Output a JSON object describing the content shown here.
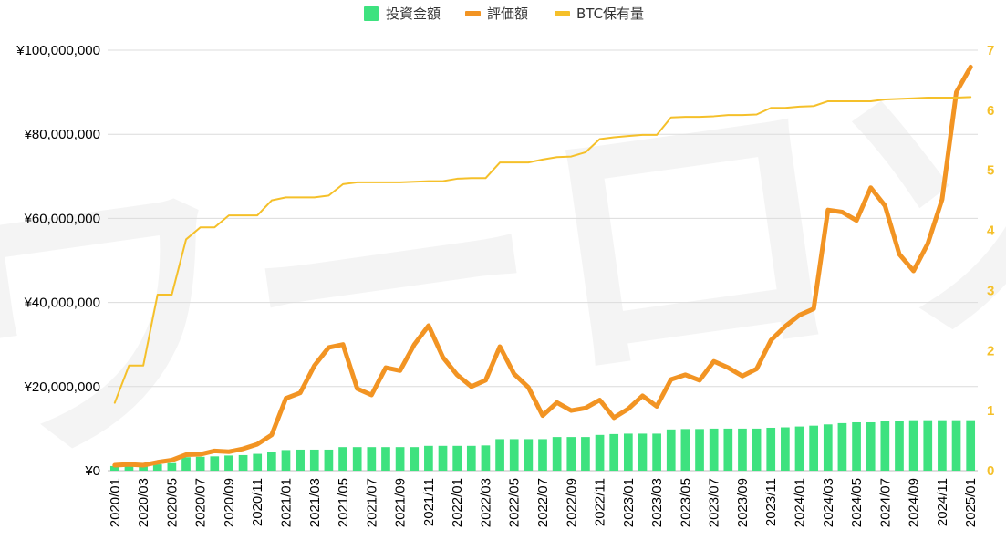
{
  "chart_data": {
    "type": "bar+line",
    "title": "",
    "watermark": "ワーロゾ",
    "legend": {
      "placement": "top-center",
      "items": [
        {
          "name": "投資金額",
          "color": "#3ee27f",
          "shape": "square"
        },
        {
          "name": "評価額",
          "color": "#f29423",
          "shape": "line"
        },
        {
          "name": "BTC保有量",
          "color": "#f5c02a",
          "shape": "line"
        }
      ]
    },
    "categories": [
      "2020/01",
      "2020/02",
      "2020/03",
      "2020/04",
      "2020/05",
      "2020/06",
      "2020/07",
      "2020/08",
      "2020/09",
      "2020/10",
      "2020/11",
      "2020/12",
      "2021/01",
      "2021/02",
      "2021/03",
      "2021/04",
      "2021/05",
      "2021/06",
      "2021/07",
      "2021/08",
      "2021/09",
      "2021/10",
      "2021/11",
      "2021/12",
      "2022/01",
      "2022/02",
      "2022/03",
      "2022/04",
      "2022/05",
      "2022/06",
      "2022/07",
      "2022/08",
      "2022/09",
      "2022/10",
      "2022/11",
      "2022/12",
      "2023/01",
      "2023/02",
      "2023/03",
      "2023/04",
      "2023/05",
      "2023/06",
      "2023/07",
      "2023/08",
      "2023/09",
      "2023/10",
      "2023/11",
      "2023/12",
      "2024/01",
      "2024/02",
      "2024/03",
      "2024/04",
      "2024/05",
      "2024/06",
      "2024/07",
      "2024/08",
      "2024/09",
      "2024/10",
      "2024/11",
      "2024/12",
      "2025/01"
    ],
    "x_tick_labels": [
      "2020/01",
      "2020/03",
      "2020/05",
      "2020/07",
      "2020/09",
      "2020/11",
      "2021/01",
      "2021/03",
      "2021/05",
      "2021/07",
      "2021/09",
      "2021/11",
      "2022/01",
      "2022/03",
      "2022/05",
      "2022/07",
      "2022/09",
      "2022/11",
      "2023/01",
      "2023/03",
      "2023/05",
      "2023/07",
      "2023/09",
      "2023/11",
      "2024/01",
      "2024/03",
      "2024/05",
      "2024/07",
      "2024/09",
      "2024/11",
      "2025/01"
    ],
    "y_left": {
      "min": 0,
      "max": 100000000,
      "ticks": [
        "¥0",
        "¥20,000,000",
        "¥40,000,000",
        "¥60,000,000",
        "¥80,000,000",
        "¥100,000,000"
      ]
    },
    "y_right": {
      "min": 0,
      "max": 7,
      "ticks": [
        "0",
        "1",
        "2",
        "3",
        "4",
        "5",
        "6",
        "7"
      ],
      "color": "#f5c02a"
    },
    "grid": true,
    "series": [
      {
        "name": "投資金額",
        "type": "bar",
        "axis": "left",
        "color": "#3ee27f",
        "values": [
          1100000,
          1200000,
          1300000,
          1500000,
          1800000,
          3200000,
          3300000,
          3400000,
          3600000,
          3700000,
          4000000,
          4400000,
          4900000,
          5000000,
          5000000,
          5000000,
          5600000,
          5600000,
          5600000,
          5600000,
          5600000,
          5600000,
          5900000,
          5900000,
          5900000,
          5900000,
          6000000,
          7500000,
          7500000,
          7500000,
          7500000,
          8000000,
          8000000,
          8000000,
          8500000,
          8700000,
          8800000,
          8800000,
          8800000,
          9800000,
          9900000,
          9900000,
          10000000,
          10000000,
          10000000,
          10000000,
          10200000,
          10300000,
          10500000,
          10700000,
          11000000,
          11300000,
          11500000,
          11500000,
          11800000,
          11800000,
          12000000,
          12000000,
          12000000,
          12000000,
          12000000
        ]
      },
      {
        "name": "評価額",
        "type": "line",
        "axis": "left",
        "color": "#f29423",
        "values": [
          1300000,
          1500000,
          1300000,
          2000000,
          2500000,
          3800000,
          3900000,
          4700000,
          4500000,
          5200000,
          6300000,
          8500000,
          17200000,
          18500000,
          25000000,
          29300000,
          30000000,
          19500000,
          18000000,
          24500000,
          23800000,
          30000000,
          34500000,
          27000000,
          22800000,
          20000000,
          21500000,
          29500000,
          23000000,
          19800000,
          13100000,
          16200000,
          14300000,
          14900000,
          16800000,
          12600000,
          14700000,
          17800000,
          15300000,
          21700000,
          22800000,
          21500000,
          26000000,
          24500000,
          22500000,
          24200000,
          31000000,
          34300000,
          37000000,
          38500000,
          62000000,
          61500000,
          59500000,
          67300000,
          63000000,
          51500000,
          47500000,
          54000000,
          64500000,
          90000000,
          96000000
        ]
      },
      {
        "name": "BTC保有量",
        "type": "line",
        "axis": "right",
        "color": "#f5c02a",
        "values": [
          1.13,
          1.75,
          1.75,
          2.93,
          2.93,
          3.85,
          4.05,
          4.05,
          4.25,
          4.25,
          4.25,
          4.5,
          4.55,
          4.55,
          4.55,
          4.58,
          4.77,
          4.8,
          4.8,
          4.8,
          4.8,
          4.81,
          4.82,
          4.82,
          4.86,
          4.87,
          4.87,
          5.13,
          5.13,
          5.13,
          5.18,
          5.22,
          5.23,
          5.3,
          5.52,
          5.55,
          5.57,
          5.59,
          5.59,
          5.88,
          5.89,
          5.89,
          5.9,
          5.92,
          5.92,
          5.93,
          6.04,
          6.04,
          6.06,
          6.07,
          6.15,
          6.15,
          6.15,
          6.15,
          6.18,
          6.19,
          6.2,
          6.21,
          6.21,
          6.21,
          6.22
        ]
      }
    ]
  }
}
